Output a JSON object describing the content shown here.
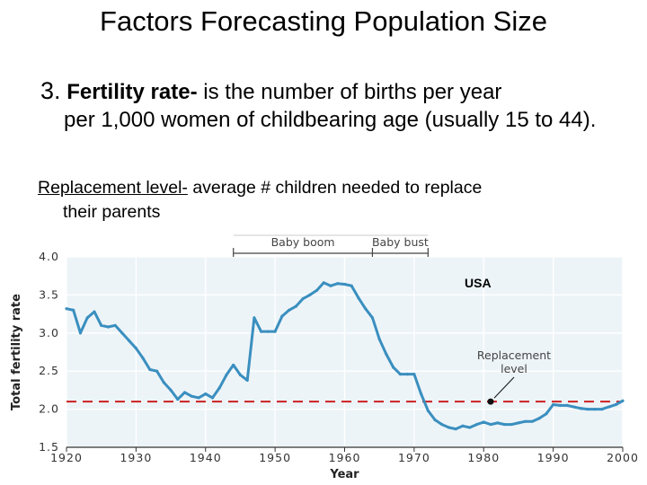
{
  "slide": {
    "title": "Factors Forecasting Population Size",
    "point_number": "3.",
    "fertility_term": "Fertility rate-",
    "fertility_def_first": " is the number of births per year",
    "fertility_def_rest": "per 1,000 women of childbearing age (usually 15 to 44).",
    "replacement_term": "Replacement level-",
    "replacement_def_first": " average # children needed to replace",
    "replacement_def_rest": "their parents"
  },
  "chart_data": {
    "type": "line",
    "title": "",
    "xlabel": "Year",
    "ylabel": "Total fertility rate",
    "xlim": [
      1920,
      2000
    ],
    "ylim": [
      1.5,
      4.0
    ],
    "x_ticks": [
      "1920",
      "1930",
      "1940",
      "1950",
      "1960",
      "1970",
      "1980",
      "1990",
      "2000"
    ],
    "y_ticks": [
      "1.5",
      "2.0",
      "2.5",
      "3.0",
      "3.5",
      "4.0"
    ],
    "label": "USA",
    "period_labels": [
      "Baby boom",
      "Baby bust"
    ],
    "replacement_label": [
      "Replacement",
      "level"
    ],
    "replacement_level": 2.1,
    "replacement_marker_year": 1981,
    "line_color": "#3a8fbf",
    "replacement_color": "#cc2020",
    "series": [
      {
        "x": [
          1920,
          1921,
          1922,
          1923,
          1924,
          1925,
          1926,
          1927,
          1928,
          1929,
          1930,
          1931,
          1932,
          1933,
          1934,
          1935,
          1936,
          1937,
          1938,
          1939,
          1940,
          1941,
          1942,
          1943,
          1944,
          1945,
          1946,
          1947,
          1948,
          1949,
          1950,
          1951,
          1952,
          1953,
          1954,
          1955,
          1956,
          1957,
          1958,
          1959,
          1960,
          1961,
          1962,
          1963,
          1964,
          1965,
          1966,
          1967,
          1968,
          1969,
          1970,
          1971,
          1972,
          1973,
          1974,
          1975,
          1976,
          1977,
          1978,
          1979,
          1980,
          1981,
          1982,
          1983,
          1984,
          1985,
          1986,
          1987,
          1988,
          1989,
          1990,
          1991,
          1992,
          1993,
          1994,
          1995,
          1996,
          1997,
          1998,
          1999,
          2000
        ],
        "values": [
          3.32,
          3.3,
          3.0,
          3.2,
          3.28,
          3.1,
          3.08,
          3.1,
          3.0,
          2.9,
          2.8,
          2.67,
          2.52,
          2.5,
          2.35,
          2.25,
          2.13,
          2.22,
          2.17,
          2.15,
          2.2,
          2.15,
          2.28,
          2.45,
          2.58,
          2.45,
          2.38,
          3.2,
          3.02,
          3.02,
          3.02,
          3.22,
          3.3,
          3.35,
          3.45,
          3.5,
          3.56,
          3.66,
          3.62,
          3.65,
          3.64,
          3.62,
          3.46,
          3.32,
          3.2,
          2.92,
          2.72,
          2.55,
          2.46,
          2.46,
          2.46,
          2.2,
          1.98,
          1.86,
          1.8,
          1.76,
          1.74,
          1.78,
          1.76,
          1.8,
          1.83,
          1.8,
          1.82,
          1.8,
          1.8,
          1.82,
          1.84,
          1.84,
          1.88,
          1.94,
          2.06,
          2.05,
          2.05,
          2.03,
          2.01,
          2.0,
          2.0,
          2.0,
          2.03,
          2.06,
          2.11
        ]
      }
    ]
  }
}
